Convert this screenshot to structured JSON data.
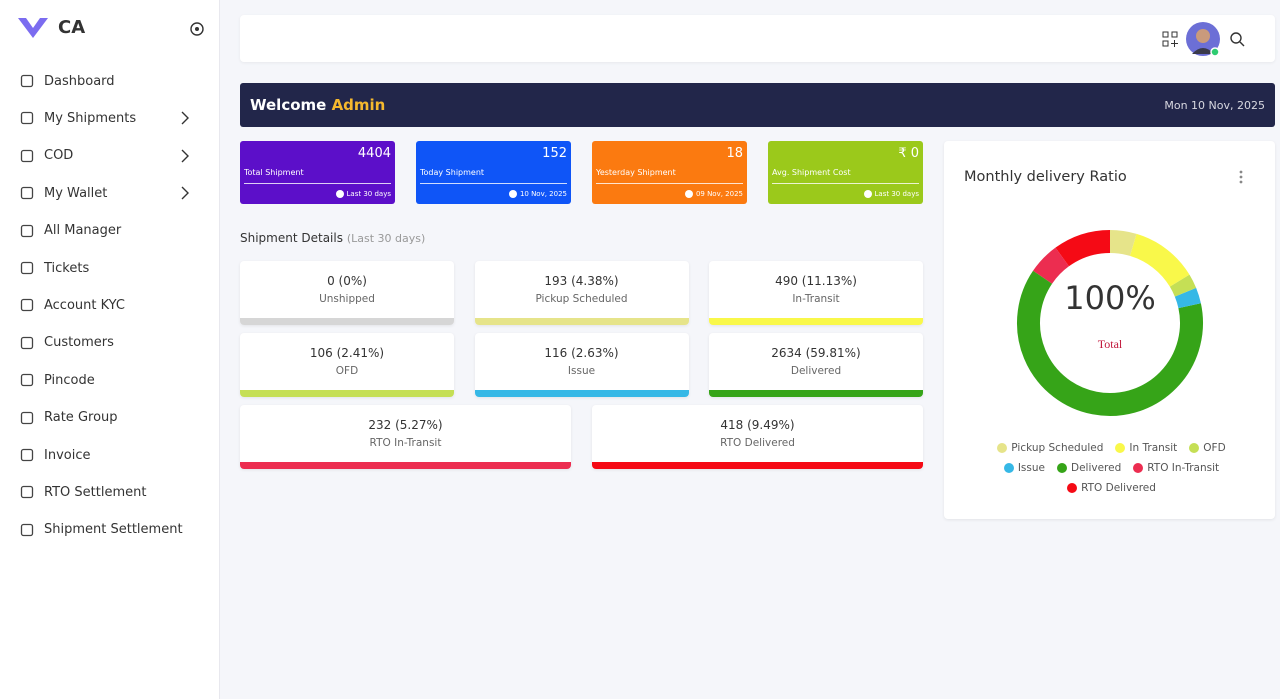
{
  "sidebar": {
    "brand": "CA",
    "menu": [
      {
        "label": "Dashboard"
      },
      {
        "label": "My Shipments",
        "submenu": true
      },
      {
        "label": "COD",
        "submenu": true
      },
      {
        "label": "My Wallet",
        "submenu": true
      },
      {
        "label": "All Manager"
      },
      {
        "label": "Tickets"
      },
      {
        "label": "Account KYC"
      },
      {
        "label": "Customers"
      },
      {
        "label": "Pincode"
      },
      {
        "label": "Rate Group"
      },
      {
        "label": "Invoice"
      },
      {
        "label": "RTO Settlement"
      },
      {
        "label": "Shipment Settlement"
      }
    ]
  },
  "welcome": {
    "greeting": "Welcome",
    "name": "Admin",
    "date": "Mon 10 Nov, 2025"
  },
  "stats": [
    {
      "value": "4404",
      "label": "Total Shipment",
      "note": "Last 30 days"
    },
    {
      "value": "152",
      "label": "Today Shipment",
      "note": "10 Nov, 2025"
    },
    {
      "value": "18",
      "label": "Yesterday Shipment",
      "note": "09 Nov, 2025"
    },
    {
      "value": "₹ 0",
      "label": "Avg. Shipment Cost",
      "note": "Last 30 days"
    }
  ],
  "shipment_details": {
    "title": "Shipment Details",
    "subtitle": "(Last 30 days)",
    "cards": [
      {
        "value": "0 (0%)",
        "label": "Unshipped"
      },
      {
        "value": "193 (4.38%)",
        "label": "Pickup Scheduled"
      },
      {
        "value": "490 (11.13%)",
        "label": "In-Transit"
      },
      {
        "value": "106 (2.41%)",
        "label": "OFD"
      },
      {
        "value": "116 (2.63%)",
        "label": "Issue"
      },
      {
        "value": "2634 (59.81%)",
        "label": "Delivered"
      },
      {
        "value": "232 (5.27%)",
        "label": "RTO In-Transit"
      },
      {
        "value": "418 (9.49%)",
        "label": "RTO Delivered"
      }
    ]
  },
  "chart_data": {
    "type": "donut",
    "title": "Monthly delivery Ratio",
    "center_label": "100%",
    "center_sublabel": "Total",
    "categories": [
      "Pickup Scheduled",
      "In Transit",
      "OFD",
      "Issue",
      "Delivered",
      "RTO In-Transit",
      "RTO Delivered"
    ],
    "values": [
      4.38,
      11.13,
      2.41,
      2.63,
      59.81,
      5.27,
      9.49
    ],
    "colors": [
      "#e6e48a",
      "#f9f84a",
      "#c5df55",
      "#36b8e6",
      "#36a418",
      "#ec2d50",
      "#f50a15"
    ]
  }
}
